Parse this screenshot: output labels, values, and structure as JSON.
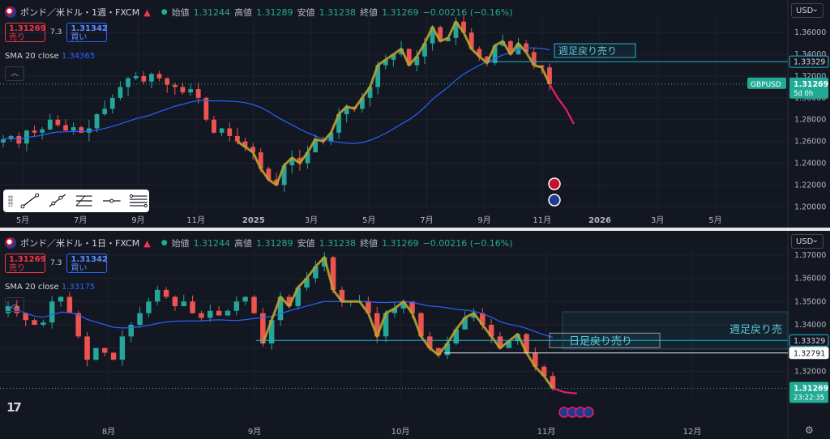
{
  "colors": {
    "background": "#131722",
    "up": "#26a69a",
    "down": "#ef5350",
    "sma": "#2962ff",
    "zigzag": "#b8a22e",
    "projection": "#e91e63",
    "level_line": "#22b5c7",
    "axis_text": "#b2b5be",
    "grid": "#1e222d"
  },
  "top": {
    "legend": {
      "title": "ポンド／米ドル・1週・FXCM",
      "open_label": "始値",
      "open": "1.31244",
      "high_label": "高値",
      "high": "1.31289",
      "low_label": "安値",
      "low": "1.31238",
      "close_label": "終値",
      "close": "1.31269",
      "change": "−0.00216 (−0.16%)"
    },
    "sell": {
      "price": "1.31269",
      "label": "売り"
    },
    "buy": {
      "price": "1.31342",
      "label": "買い"
    },
    "spread": "7.3",
    "sma_label": "SMA 20 close",
    "sma_value": "1.34365",
    "currency": "USD",
    "annotation": "週足戻り売り",
    "level_tag": "1.33329",
    "symbol_tag": "GBPUSD",
    "price_tag": "1.31269",
    "countdown": "5d 0h"
  },
  "bottom": {
    "legend": {
      "title": "ポンド／米ドル・1日・FXCM",
      "open_label": "始値",
      "open": "1.31244",
      "high_label": "高値",
      "high": "1.31289",
      "low_label": "安値",
      "low": "1.31238",
      "close_label": "終値",
      "close": "1.31269",
      "change": "−0.00216 (−0.16%)"
    },
    "sell": {
      "price": "1.31269",
      "label": "売り"
    },
    "buy": {
      "price": "1.31342",
      "label": "買い"
    },
    "spread": "7.3",
    "sma_label": "SMA 20 close",
    "sma_value": "1.33175",
    "currency": "USD",
    "annotation_weekly": "週足戻り売",
    "annotation_daily": "日足戻り売り",
    "level_tag": "1.33329",
    "level_tag2": "1.32791",
    "price_tag": "1.31269",
    "countdown": "23:22:35"
  },
  "chart_data": [
    {
      "type": "candlestick",
      "title": "ポンド／米ドル・1週・FXCM",
      "x_ticks": [
        "5月",
        "7月",
        "9月",
        "11月",
        "2025",
        "3月",
        "5月",
        "7月",
        "9月",
        "11月",
        "2026",
        "3月",
        "5月"
      ],
      "y_ticks": [
        "1.36000",
        "1.34000",
        "1.32000",
        "1.30000",
        "1.28000",
        "1.26000",
        "1.24000",
        "1.22000",
        "1.20000"
      ],
      "ylim": [
        1.195,
        1.375
      ],
      "series": [
        {
          "name": "SMA 20 close",
          "value": 1.34365
        }
      ],
      "levels": [
        1.33329
      ],
      "last_price": 1.31269,
      "close_path": [
        1.262,
        1.265,
        1.258,
        1.27,
        1.268,
        1.271,
        1.28,
        1.275,
        1.27,
        1.273,
        1.268,
        1.272,
        1.285,
        1.29,
        1.3,
        1.31,
        1.318,
        1.32,
        1.315,
        1.322,
        1.318,
        1.312,
        1.31,
        1.305,
        1.308,
        1.3,
        1.28,
        1.268,
        1.272,
        1.265,
        1.26,
        1.255,
        1.25,
        1.235,
        1.225,
        1.22,
        1.238,
        1.245,
        1.24,
        1.25,
        1.262,
        1.26,
        1.268,
        1.285,
        1.292,
        1.29,
        1.3,
        1.31,
        1.33,
        1.335,
        1.34,
        1.345,
        1.33,
        1.338,
        1.35,
        1.365,
        1.352,
        1.355,
        1.37,
        1.36,
        1.345,
        1.338,
        1.332,
        1.348,
        1.352,
        1.34,
        1.35,
        1.342,
        1.33,
        1.328,
        1.3127
      ],
      "projection": [
        1.3127,
        1.3,
        1.29,
        1.276
      ]
    },
    {
      "type": "candlestick",
      "title": "ポンド／米ドル・1日・FXCM",
      "x_ticks": [
        "8月",
        "9月",
        "10月",
        "11月",
        "12月"
      ],
      "y_ticks": [
        "1.37000",
        "1.36000",
        "1.35000",
        "1.34000",
        "1.33000",
        "1.32000"
      ],
      "ylim": [
        1.308,
        1.372
      ],
      "series": [
        {
          "name": "SMA 20 close",
          "value": 1.33175
        }
      ],
      "levels": [
        1.33329,
        1.32791
      ],
      "last_price": 1.31269,
      "close_path": [
        1.348,
        1.345,
        1.342,
        1.34,
        1.341,
        1.35,
        1.352,
        1.345,
        1.335,
        1.325,
        1.33,
        1.328,
        1.325,
        1.335,
        1.34,
        1.345,
        1.35,
        1.355,
        1.352,
        1.348,
        1.35,
        1.345,
        1.343,
        1.346,
        1.344,
        1.346,
        1.35,
        1.352,
        1.345,
        1.332,
        1.342,
        1.352,
        1.348,
        1.356,
        1.36,
        1.365,
        1.369,
        1.355,
        1.35,
        1.35,
        1.35,
        1.345,
        1.335,
        1.345,
        1.347,
        1.35,
        1.345,
        1.335,
        1.33,
        1.327,
        1.332,
        1.338,
        1.343,
        1.345,
        1.34,
        1.335,
        1.33,
        1.333,
        1.336,
        1.328,
        1.322,
        1.318,
        1.3127
      ],
      "projection": [
        1.3127,
        1.311,
        1.3105
      ]
    }
  ]
}
